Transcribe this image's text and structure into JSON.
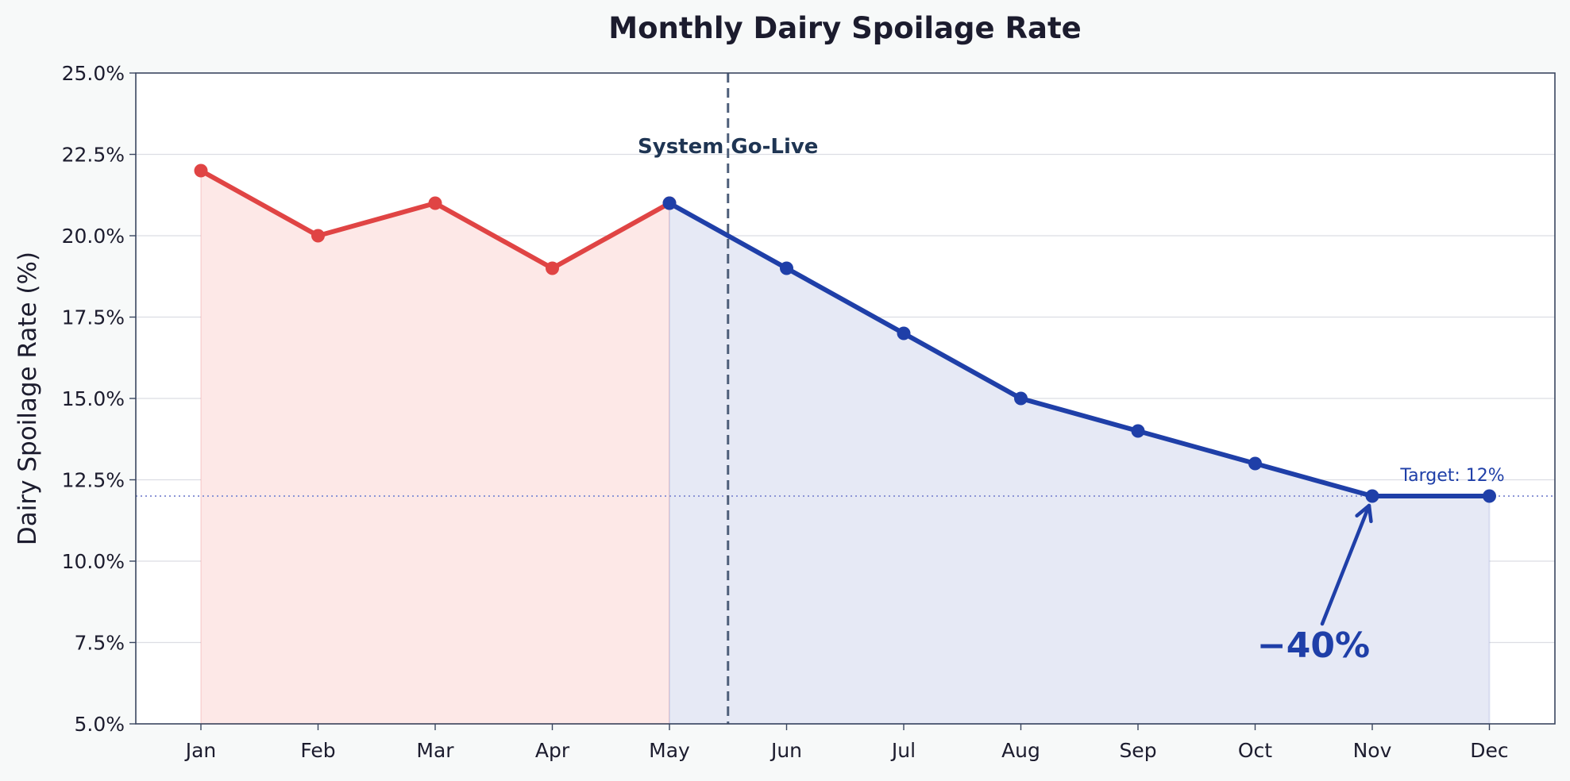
{
  "chart_data": {
    "type": "line",
    "title": "Monthly Dairy Spoilage Rate",
    "xlabel": "",
    "ylabel": "Dairy Spoilage Rate (%)",
    "categories": [
      "Jan",
      "Feb",
      "Mar",
      "Apr",
      "May",
      "Jun",
      "Jul",
      "Aug",
      "Sep",
      "Oct",
      "Nov",
      "Dec"
    ],
    "series": [
      {
        "values": [
          22,
          20,
          21,
          19,
          21,
          null,
          null,
          null,
          null,
          null,
          null,
          null
        ],
        "color": "#e04444",
        "fill": "#fde8e7"
      },
      {
        "values": [
          null,
          null,
          null,
          null,
          21,
          19,
          17,
          15,
          14,
          13,
          12,
          12
        ],
        "color": "#1f3fa8",
        "fill": "#e6e9f5"
      }
    ],
    "ylim": [
      5,
      25
    ],
    "yticks": [
      5.0,
      7.5,
      10.0,
      12.5,
      15.0,
      17.5,
      20.0,
      22.5,
      25.0
    ],
    "ytick_labels": [
      "5.0%",
      "7.5%",
      "10.0%",
      "12.5%",
      "15.0%",
      "17.5%",
      "20.0%",
      "22.5%",
      "25.0%"
    ],
    "grid": "horizontal",
    "legend": "none",
    "golive": {
      "label": "System Go-Live",
      "x_between": [
        "May",
        "Jun"
      ]
    },
    "target": {
      "label": "Target: 12%",
      "value": 12
    },
    "annotation": {
      "label": "−40%",
      "points_to": "Nov"
    },
    "colors": {
      "before": "#e04444",
      "after": "#1f3fa8",
      "golive_line": "#4e5f7a",
      "golive_text": "#1f3553",
      "target_line": "#8d96d6",
      "title": "#1c1c2e"
    }
  }
}
